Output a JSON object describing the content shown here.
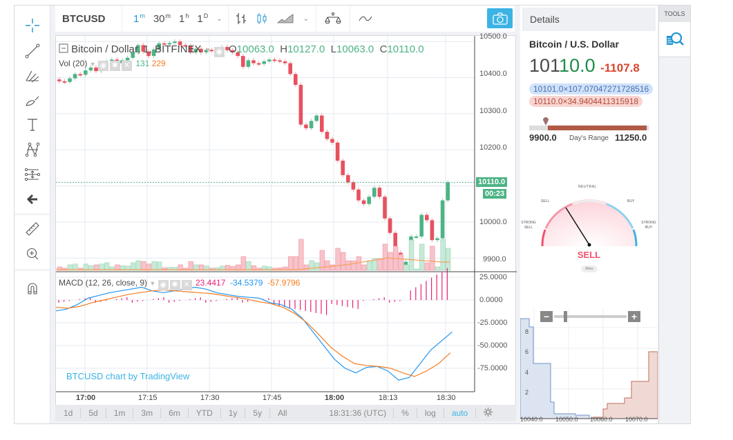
{
  "topbar": {
    "symbol": "BTCUSD",
    "resolutions": [
      {
        "n": "1",
        "u": "m",
        "active": true
      },
      {
        "n": "30",
        "u": "m",
        "active": false
      },
      {
        "n": "1",
        "u": "h",
        "active": false
      },
      {
        "n": "1",
        "u": "D",
        "active": false
      }
    ],
    "chevron": "⌄"
  },
  "legend": {
    "title": "Bitcoin / Dollar, 1, BITFINEX",
    "o_label": "O",
    "o": "10063.0",
    "h_label": "H",
    "h": "10127.0",
    "l_label": "L",
    "l": "10063.0",
    "c_label": "C",
    "c": "10110.0",
    "vol_label": "Vol (20)",
    "vol_value": "131",
    "vol_ma": "229"
  },
  "macd": {
    "label": "MACD (12, 26, close, 9)",
    "histogram": "23.4417",
    "macd": "-34.5379",
    "signal": "-57.9796"
  },
  "watermark": "BTCUSD chart by TradingView",
  "price_axis": [
    "10500.0",
    "10400.0",
    "10300.0",
    "10200.0",
    "10000.0",
    "9900.0"
  ],
  "last_price_tag": "10110.0",
  "countdown_tag": "00:23",
  "macd_axis": [
    "25.0000",
    "0.0000",
    "-25.0000",
    "-50.0000",
    "-75.0000"
  ],
  "time_axis": [
    "17:00",
    "17:15",
    "17:30",
    "17:45",
    "18:00",
    "18:13",
    "18:30"
  ],
  "bottombar": {
    "ranges": [
      "1d",
      "5d",
      "1m",
      "3m",
      "6m",
      "YTD",
      "1y",
      "5y",
      "All"
    ],
    "clock": "18:31:36 (UTC)",
    "percent": "%",
    "log": "log",
    "auto": "auto"
  },
  "details": {
    "header": "Details",
    "name": "Bitcoin / U.S. Dollar",
    "price_main": "101",
    "price_tail": "10.0",
    "change": "-1107.8",
    "bid": "10101.0×107.07047271728516",
    "ask": "10110.0×34.9404411315918",
    "day_low": "9900.0",
    "day_range_label": "Day's Range",
    "day_high": "11250.0",
    "gauge": {
      "labels": {
        "strong_sell": "STRONG SELL",
        "sell": "SELL",
        "neutral": "NEUTRAL",
        "buy": "BUY",
        "strong_buy": "STRONG BUY"
      },
      "result": "SELL",
      "more": "More"
    },
    "depth": {
      "y_ticks": [
        "8",
        "6",
        "4",
        "2"
      ],
      "x_ticks": [
        "10040.0",
        "10050.0",
        "10060.0",
        "10070.0"
      ]
    }
  },
  "tools": {
    "header": "TOOLS"
  },
  "colors": {
    "up": "#4db385",
    "down": "#e8515f",
    "accent": "#2196d3",
    "macd": "#2196f3",
    "signal": "#f57c20",
    "hist": "#e91e75"
  },
  "chart_data": {
    "type": "candlestick",
    "title": "Bitcoin / Dollar, 1, BITFINEX",
    "x_ticks": [
      "17:00",
      "17:15",
      "17:30",
      "17:45",
      "18:00",
      "18:13",
      "18:30"
    ],
    "y_ticks": [
      9900,
      10000,
      10200,
      10300,
      10400,
      10500
    ],
    "ylim": [
      9870,
      10510
    ],
    "last": {
      "open": 10063.0,
      "high": 10127.0,
      "low": 10063.0,
      "close": 10110.0
    },
    "closes": [
      10390,
      10388,
      10398,
      10410,
      10408,
      10420,
      10428,
      10418,
      10430,
      10445,
      10450,
      10440,
      10448,
      10455,
      10470,
      10490,
      10472,
      10460,
      10478,
      10495,
      10492,
      10496,
      10500,
      10490,
      10488,
      10470,
      10480,
      10470,
      10477,
      10475,
      10478,
      10485,
      10476,
      10470,
      10460,
      10430,
      10448,
      10440,
      10438,
      10445,
      10450,
      10448,
      10445,
      10440,
      10410,
      10380,
      10270,
      10260,
      10280,
      10295,
      10250,
      10230,
      10220,
      10170,
      10130,
      10110,
      10090,
      10060,
      10050,
      10070,
      10095,
      10070,
      10010,
      9970,
      9915,
      9880,
      9890,
      9960,
      9960,
      10020,
      10005,
      9950,
      9955,
      10060,
      10110
    ]
  }
}
